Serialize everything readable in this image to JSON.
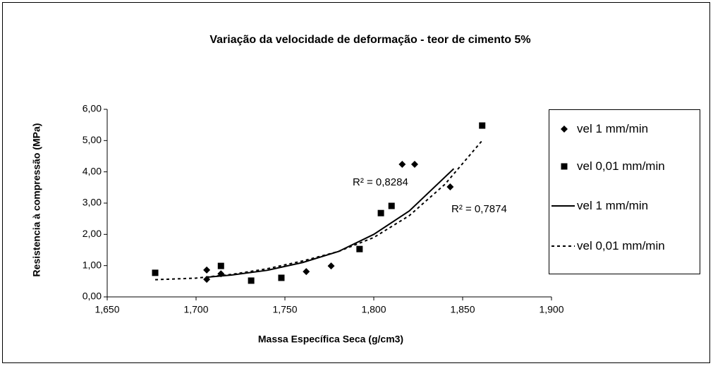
{
  "chart_data": {
    "type": "scatter",
    "title": "Variação da velocidade de deformação - teor de cimento 5%",
    "x_label": "Massa Específica Seca (g/cm3)",
    "y_label": "Resistencia à compressão (MPa)",
    "xlim": [
      1.65,
      1.9
    ],
    "xticks": [
      {
        "value": 1.65,
        "label": "1,650"
      },
      {
        "value": 1.7,
        "label": "1,700"
      },
      {
        "value": 1.75,
        "label": "1,750"
      },
      {
        "value": 1.8,
        "label": "1,800"
      },
      {
        "value": 1.85,
        "label": "1,850"
      },
      {
        "value": 1.9,
        "label": "1,900"
      }
    ],
    "ylim": [
      0,
      6
    ],
    "yticks": [
      {
        "value": 0,
        "label": "0,00"
      },
      {
        "value": 1,
        "label": "1,00"
      },
      {
        "value": 2,
        "label": "2,00"
      },
      {
        "value": 3,
        "label": "3,00"
      },
      {
        "value": 4,
        "label": "4,00"
      },
      {
        "value": 5,
        "label": "5,00"
      },
      {
        "value": 6,
        "label": "6,00"
      }
    ],
    "grid": false,
    "legend": "right",
    "series": [
      {
        "name": "vel 1 mm/min",
        "color": "#000000",
        "mode": "markers",
        "marker": "diamond",
        "x": [
          1.706,
          1.706,
          1.714,
          1.762,
          1.776,
          1.816,
          1.823,
          1.843
        ],
        "values": [
          0.86,
          0.56,
          0.74,
          0.81,
          0.99,
          4.24,
          4.24,
          3.52
        ]
      },
      {
        "name": "vel 0,01 mm/min",
        "color": "#000000",
        "mode": "markers",
        "marker": "square",
        "x": [
          1.677,
          1.714,
          1.731,
          1.748,
          1.792,
          1.804,
          1.81,
          1.861
        ],
        "values": [
          0.77,
          0.99,
          0.52,
          0.61,
          1.53,
          2.68,
          2.91,
          5.48
        ]
      },
      {
        "name": "vel 1 mm/min",
        "color": "#000000",
        "mode": "line",
        "dash": false,
        "x": [
          1.706,
          1.72,
          1.74,
          1.76,
          1.78,
          1.8,
          1.82,
          1.845
        ],
        "values": [
          0.63,
          0.7,
          0.85,
          1.1,
          1.45,
          2.0,
          2.75,
          4.1
        ]
      },
      {
        "name": "vel 0,01 mm/min",
        "color": "#000000",
        "mode": "line",
        "dash": true,
        "x": [
          1.677,
          1.7,
          1.72,
          1.74,
          1.76,
          1.78,
          1.8,
          1.82,
          1.84,
          1.861
        ],
        "values": [
          0.55,
          0.6,
          0.72,
          0.9,
          1.15,
          1.45,
          1.9,
          2.6,
          3.6,
          5.0
        ]
      }
    ],
    "annotations": [
      "R² = 0,8284",
      "R² = 0,7874"
    ]
  }
}
